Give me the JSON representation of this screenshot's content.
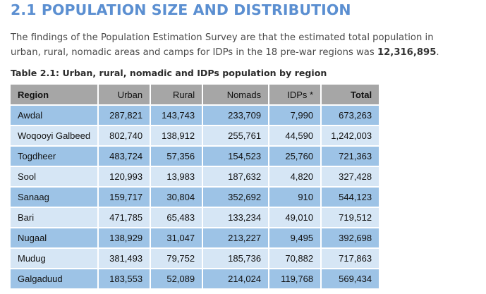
{
  "section": {
    "title": "2.1 POPULATION SIZE AND DISTRIBUTION",
    "intro_text": "The findings of the Population Estimation Survey are that the estimated total population in urban, rural, nomadic areas and camps for IDPs in the 18 pre-war regions was ",
    "intro_total": "12,316,895",
    "intro_end": "."
  },
  "table": {
    "caption": "Table 2.1: Urban, rural, nomadic and IDPs population by region",
    "headers": {
      "region": "Region",
      "urban": "Urban",
      "rural": "Rural",
      "nomads": "Nomads",
      "idps": "IDPs *",
      "total": "Total"
    },
    "rows": [
      {
        "region": "Awdal",
        "urban": "287,821",
        "rural": "143,743",
        "nomads": "233,709",
        "idps": "7,990",
        "total": "673,263"
      },
      {
        "region": "Woqooyi Galbeed",
        "urban": "802,740",
        "rural": "138,912",
        "nomads": "255,761",
        "idps": "44,590",
        "total": "1,242,003"
      },
      {
        "region": "Togdheer",
        "urban": "483,724",
        "rural": "57,356",
        "nomads": "154,523",
        "idps": "25,760",
        "total": "721,363"
      },
      {
        "region": "Sool",
        "urban": "120,993",
        "rural": "13,983",
        "nomads": "187,632",
        "idps": "4,820",
        "total": "327,428"
      },
      {
        "region": "Sanaag",
        "urban": "159,717",
        "rural": "30,804",
        "nomads": "352,692",
        "idps": "910",
        "total": "544,123"
      },
      {
        "region": "Bari",
        "urban": "471,785",
        "rural": "65,483",
        "nomads": "133,234",
        "idps": "49,010",
        "total": "719,512"
      },
      {
        "region": "Nugaal",
        "urban": "138,929",
        "rural": "31,047",
        "nomads": "213,227",
        "idps": "9,495",
        "total": "392,698"
      },
      {
        "region": "Mudug",
        "urban": "381,493",
        "rural": "79,752",
        "nomads": "185,736",
        "idps": "70,882",
        "total": "717,863"
      },
      {
        "region": "Galgaduud",
        "urban": "183,553",
        "rural": "52,089",
        "nomads": "214,024",
        "idps": "119,768",
        "total": "569,434"
      }
    ]
  },
  "colors": {
    "title": "#5b8fd1",
    "header_bg": "#a6a6a6",
    "row_dark": "#9dc3e6",
    "row_light": "#d6e6f5"
  }
}
